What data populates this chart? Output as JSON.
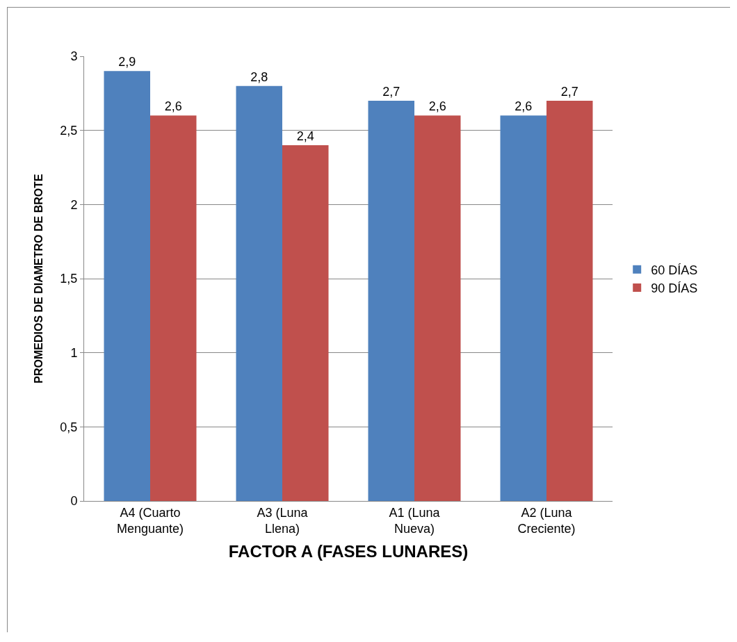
{
  "chart_data": {
    "type": "bar",
    "xlabel": "FACTOR A (FASES LUNARES)",
    "ylabel": "PROMEDIOS DE DIAMETRO DE BROTE",
    "categories": [
      "A4 (Cuarto Menguante)",
      "A3 (Luna Llena)",
      "A1 (Luna Nueva)",
      "A2 (Luna Creciente)"
    ],
    "series": [
      {
        "name": "60 DÍAS",
        "color": "#4f81bd",
        "values": [
          2.9,
          2.8,
          2.7,
          2.6
        ],
        "value_labels": [
          "2,9",
          "2,8",
          "2,7",
          "2,6"
        ]
      },
      {
        "name": "90 DÍAS",
        "color": "#c0504d",
        "values": [
          2.6,
          2.4,
          2.6,
          2.7
        ],
        "value_labels": [
          "2,6",
          "2,4",
          "2,6",
          "2,7"
        ]
      }
    ],
    "ylim": [
      0,
      3
    ],
    "yticks": [
      0,
      {
        "value": 0.5,
        "label": "0,5"
      },
      1,
      {
        "value": 1.5,
        "label": "1,5"
      },
      2,
      {
        "value": 2.5,
        "label": "2,5"
      },
      3
    ],
    "grid": "y",
    "legend": "right"
  }
}
